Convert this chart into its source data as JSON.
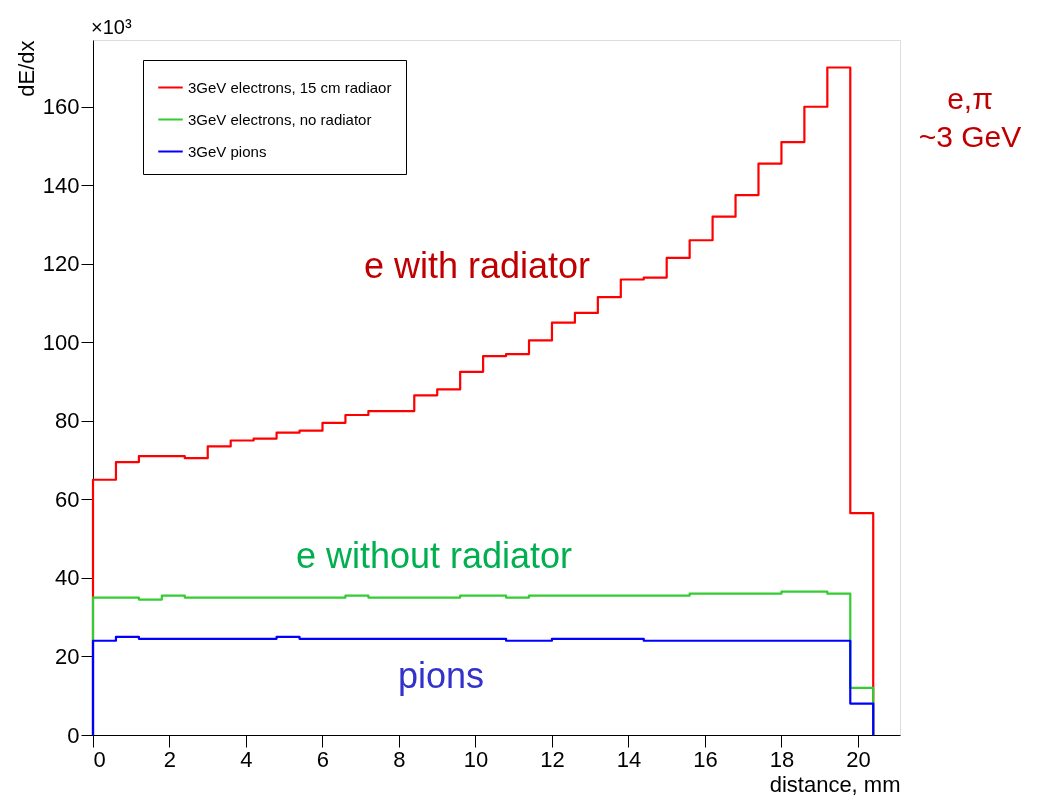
{
  "chart_data": {
    "type": "histogram",
    "xlabel": "distance, mm",
    "ylabel": "dE/dx",
    "bins": [
      0,
      0.6,
      1.2,
      1.8,
      2.4,
      3.0,
      3.6,
      4.2,
      4.8,
      5.4,
      6.0,
      6.6,
      7.2,
      7.8,
      8.4,
      9.0,
      9.6,
      10.2,
      10.8,
      11.4,
      12.0,
      12.6,
      13.2,
      13.8,
      14.4,
      15.0,
      15.6,
      16.2,
      16.8,
      17.4,
      18.0,
      18.6,
      19.2,
      19.8,
      20.4
    ],
    "series": [
      {
        "name": "3GeV electrons, 15 cm radiaor",
        "color": "#ff0000",
        "values": [
          65,
          69.5,
          71,
          71,
          70.5,
          73.5,
          75,
          75.5,
          77,
          77.5,
          79.5,
          81.5,
          82.5,
          82.5,
          86.5,
          88,
          92.5,
          96.5,
          97,
          100.5,
          105,
          107.5,
          111.5,
          116,
          116.5,
          121.5,
          126,
          132,
          137.5,
          145.5,
          151,
          160,
          170,
          56.5
        ]
      },
      {
        "name": "3GeV electrons, no radiator",
        "color": "#33cc33",
        "values": [
          35,
          35,
          34.5,
          35.5,
          35,
          35,
          35,
          35,
          35,
          35,
          35,
          35.5,
          35,
          35,
          35,
          35,
          35.5,
          35.5,
          35,
          35.5,
          35.5,
          35.5,
          35.5,
          35.5,
          35.5,
          35.5,
          36,
          36,
          36,
          36,
          36.5,
          36.5,
          36,
          12
        ]
      },
      {
        "name": "3GeV pions",
        "color": "#0000ff",
        "values": [
          24,
          25,
          24.5,
          24.5,
          24.5,
          24.5,
          24.5,
          24.5,
          25,
          24.5,
          24.5,
          24.5,
          24.5,
          24.5,
          24.5,
          24.5,
          24.5,
          24.5,
          24,
          24,
          24.5,
          24.5,
          24.5,
          24.5,
          24,
          24,
          24,
          24,
          24,
          24,
          24,
          24,
          24,
          8
        ]
      }
    ],
    "xlim": [
      0,
      21.1
    ],
    "ylim": [
      0,
      177
    ],
    "xticks": [
      0,
      2,
      4,
      6,
      8,
      10,
      12,
      14,
      16,
      18,
      20
    ],
    "yticks": [
      0,
      20,
      40,
      60,
      80,
      100,
      120,
      140,
      160
    ],
    "legend": "top left",
    "grid": false,
    "annotations": [
      "×10³",
      "e with radiator",
      "e without radiator",
      "pions",
      "e,π\n~3 GeV"
    ]
  }
}
